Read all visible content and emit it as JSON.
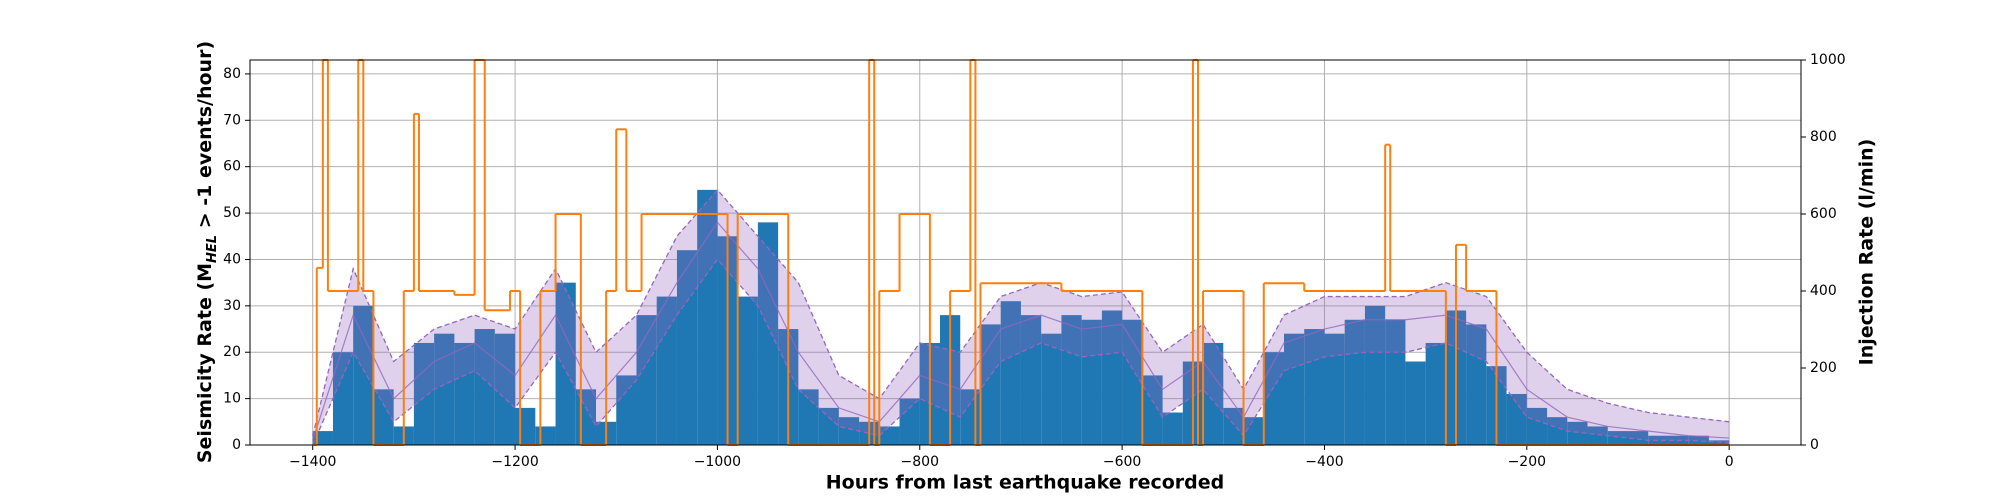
{
  "chart_data": {
    "type": "histogram",
    "x_label": "Hours from last earthquake recorded",
    "y_label": {
      "prefix": "Seismicity Rate (M",
      "sub": "HEL",
      "suffix": " > -1 events/hour)"
    },
    "y2_label": "Injection Rate (l/min)",
    "grid": true,
    "color": "#1f77b4",
    "bins": [
      -1400,
      -1380,
      -1360,
      -1340,
      -1320,
      -1300,
      -1280,
      -1260,
      -1240,
      -1220,
      -1200,
      -1180,
      -1160,
      -1140,
      -1120,
      -1100,
      -1080,
      -1060,
      -1040,
      -1020,
      -1000,
      -980,
      -960,
      -940,
      -920,
      -900,
      -880,
      -860,
      -840,
      -820,
      -800,
      -780,
      -760,
      -740,
      -720,
      -700,
      -680,
      -660,
      -640,
      -620,
      -600,
      -580,
      -560,
      -540,
      -520,
      -500,
      -480,
      -460,
      -440,
      -420,
      -400,
      -380,
      -360,
      -340,
      -320,
      -300,
      -280,
      -260,
      -240,
      -220,
      -200,
      -180,
      -160,
      -140,
      -120,
      -100,
      -80,
      -60,
      -40,
      -20,
      0
    ],
    "counts": [
      3,
      20,
      30,
      12,
      4,
      22,
      24,
      22,
      25,
      24,
      8,
      4,
      35,
      12,
      5,
      15,
      28,
      32,
      42,
      55,
      45,
      32,
      48,
      25,
      12,
      8,
      6,
      5,
      4,
      10,
      22,
      28,
      12,
      26,
      31,
      28,
      24,
      28,
      27,
      29,
      27,
      15,
      7,
      18,
      22,
      8,
      6,
      20,
      24,
      25,
      24,
      27,
      30,
      27,
      18,
      22,
      29,
      26,
      17,
      11,
      8,
      6,
      5,
      4,
      3,
      3,
      2,
      2,
      2,
      1
    ],
    "model": {
      "color": "#9467bd",
      "x": [
        -1400,
        -1360,
        -1320,
        -1280,
        -1240,
        -1200,
        -1160,
        -1120,
        -1080,
        -1040,
        -1000,
        -960,
        -920,
        -880,
        -840,
        -800,
        -760,
        -720,
        -680,
        -640,
        -600,
        -560,
        -520,
        -480,
        -440,
        -400,
        -360,
        -320,
        -280,
        -240,
        -200,
        -160,
        -120,
        -80,
        -40,
        0
      ],
      "upper": [
        2,
        38,
        18,
        25,
        28,
        25,
        38,
        20,
        28,
        45,
        55,
        45,
        35,
        15,
        10,
        22,
        20,
        32,
        35,
        32,
        33,
        20,
        26,
        12,
        28,
        32,
        32,
        32,
        35,
        32,
        20,
        12,
        9,
        7,
        6,
        5
      ],
      "median": [
        1,
        28,
        10,
        18,
        22,
        15,
        28,
        10,
        20,
        35,
        48,
        38,
        20,
        8,
        5,
        15,
        12,
        25,
        28,
        25,
        26,
        12,
        18,
        6,
        22,
        25,
        27,
        27,
        28,
        25,
        12,
        6,
        4,
        3,
        2,
        1.5
      ],
      "lower": [
        0,
        20,
        5,
        12,
        16,
        8,
        20,
        4,
        14,
        28,
        40,
        30,
        12,
        4,
        2,
        10,
        6,
        18,
        22,
        19,
        20,
        6,
        12,
        2,
        16,
        19,
        20,
        20,
        22,
        18,
        6,
        3,
        2,
        1,
        1,
        0.5
      ]
    },
    "series": [
      {
        "axis": "y2",
        "color": "#ff7f0e",
        "x": [
          -1400,
          -1396,
          -1390,
          -1385,
          -1355,
          -1350,
          -1340,
          -1310,
          -1300,
          -1295,
          -1260,
          -1240,
          -1230,
          -1205,
          -1195,
          -1175,
          -1160,
          -1135,
          -1110,
          -1100,
          -1090,
          -1075,
          -1030,
          -1000,
          -990,
          -980,
          -940,
          -930,
          -850,
          -845,
          -840,
          -820,
          -790,
          -770,
          -750,
          -745,
          -740,
          -660,
          -580,
          -530,
          -525,
          -520,
          -480,
          -460,
          -420,
          -380,
          -340,
          -335,
          -320,
          -280,
          -270,
          -260,
          -230,
          0
        ],
        "values": [
          0,
          460,
          1000,
          400,
          1000,
          400,
          0,
          400,
          860,
          400,
          390,
          1000,
          350,
          400,
          0,
          400,
          600,
          0,
          400,
          820,
          400,
          600,
          600,
          600,
          0,
          600,
          600,
          0,
          1000,
          0,
          400,
          600,
          0,
          400,
          1000,
          0,
          420,
          400,
          0,
          1000,
          0,
          400,
          0,
          420,
          400,
          400,
          780,
          400,
          400,
          0,
          520,
          400,
          0,
          0
        ]
      }
    ],
    "xlim": [
      -1462,
      71
    ],
    "ylim": [
      0,
      83
    ],
    "y2lim": [
      0,
      1000
    ],
    "xticks": [
      {
        "value": -1400,
        "label": "−1400"
      },
      {
        "value": -1200,
        "label": "−1200"
      },
      {
        "value": -1000,
        "label": "−1000"
      },
      {
        "value": -800,
        "label": "−800"
      },
      {
        "value": -600,
        "label": "−600"
      },
      {
        "value": -400,
        "label": "−400"
      },
      {
        "value": -200,
        "label": "−200"
      },
      0
    ],
    "yticks": [
      0,
      10,
      20,
      30,
      40,
      50,
      60,
      70,
      80
    ],
    "y2ticks": [
      0,
      200,
      400,
      600,
      800,
      1000
    ]
  }
}
